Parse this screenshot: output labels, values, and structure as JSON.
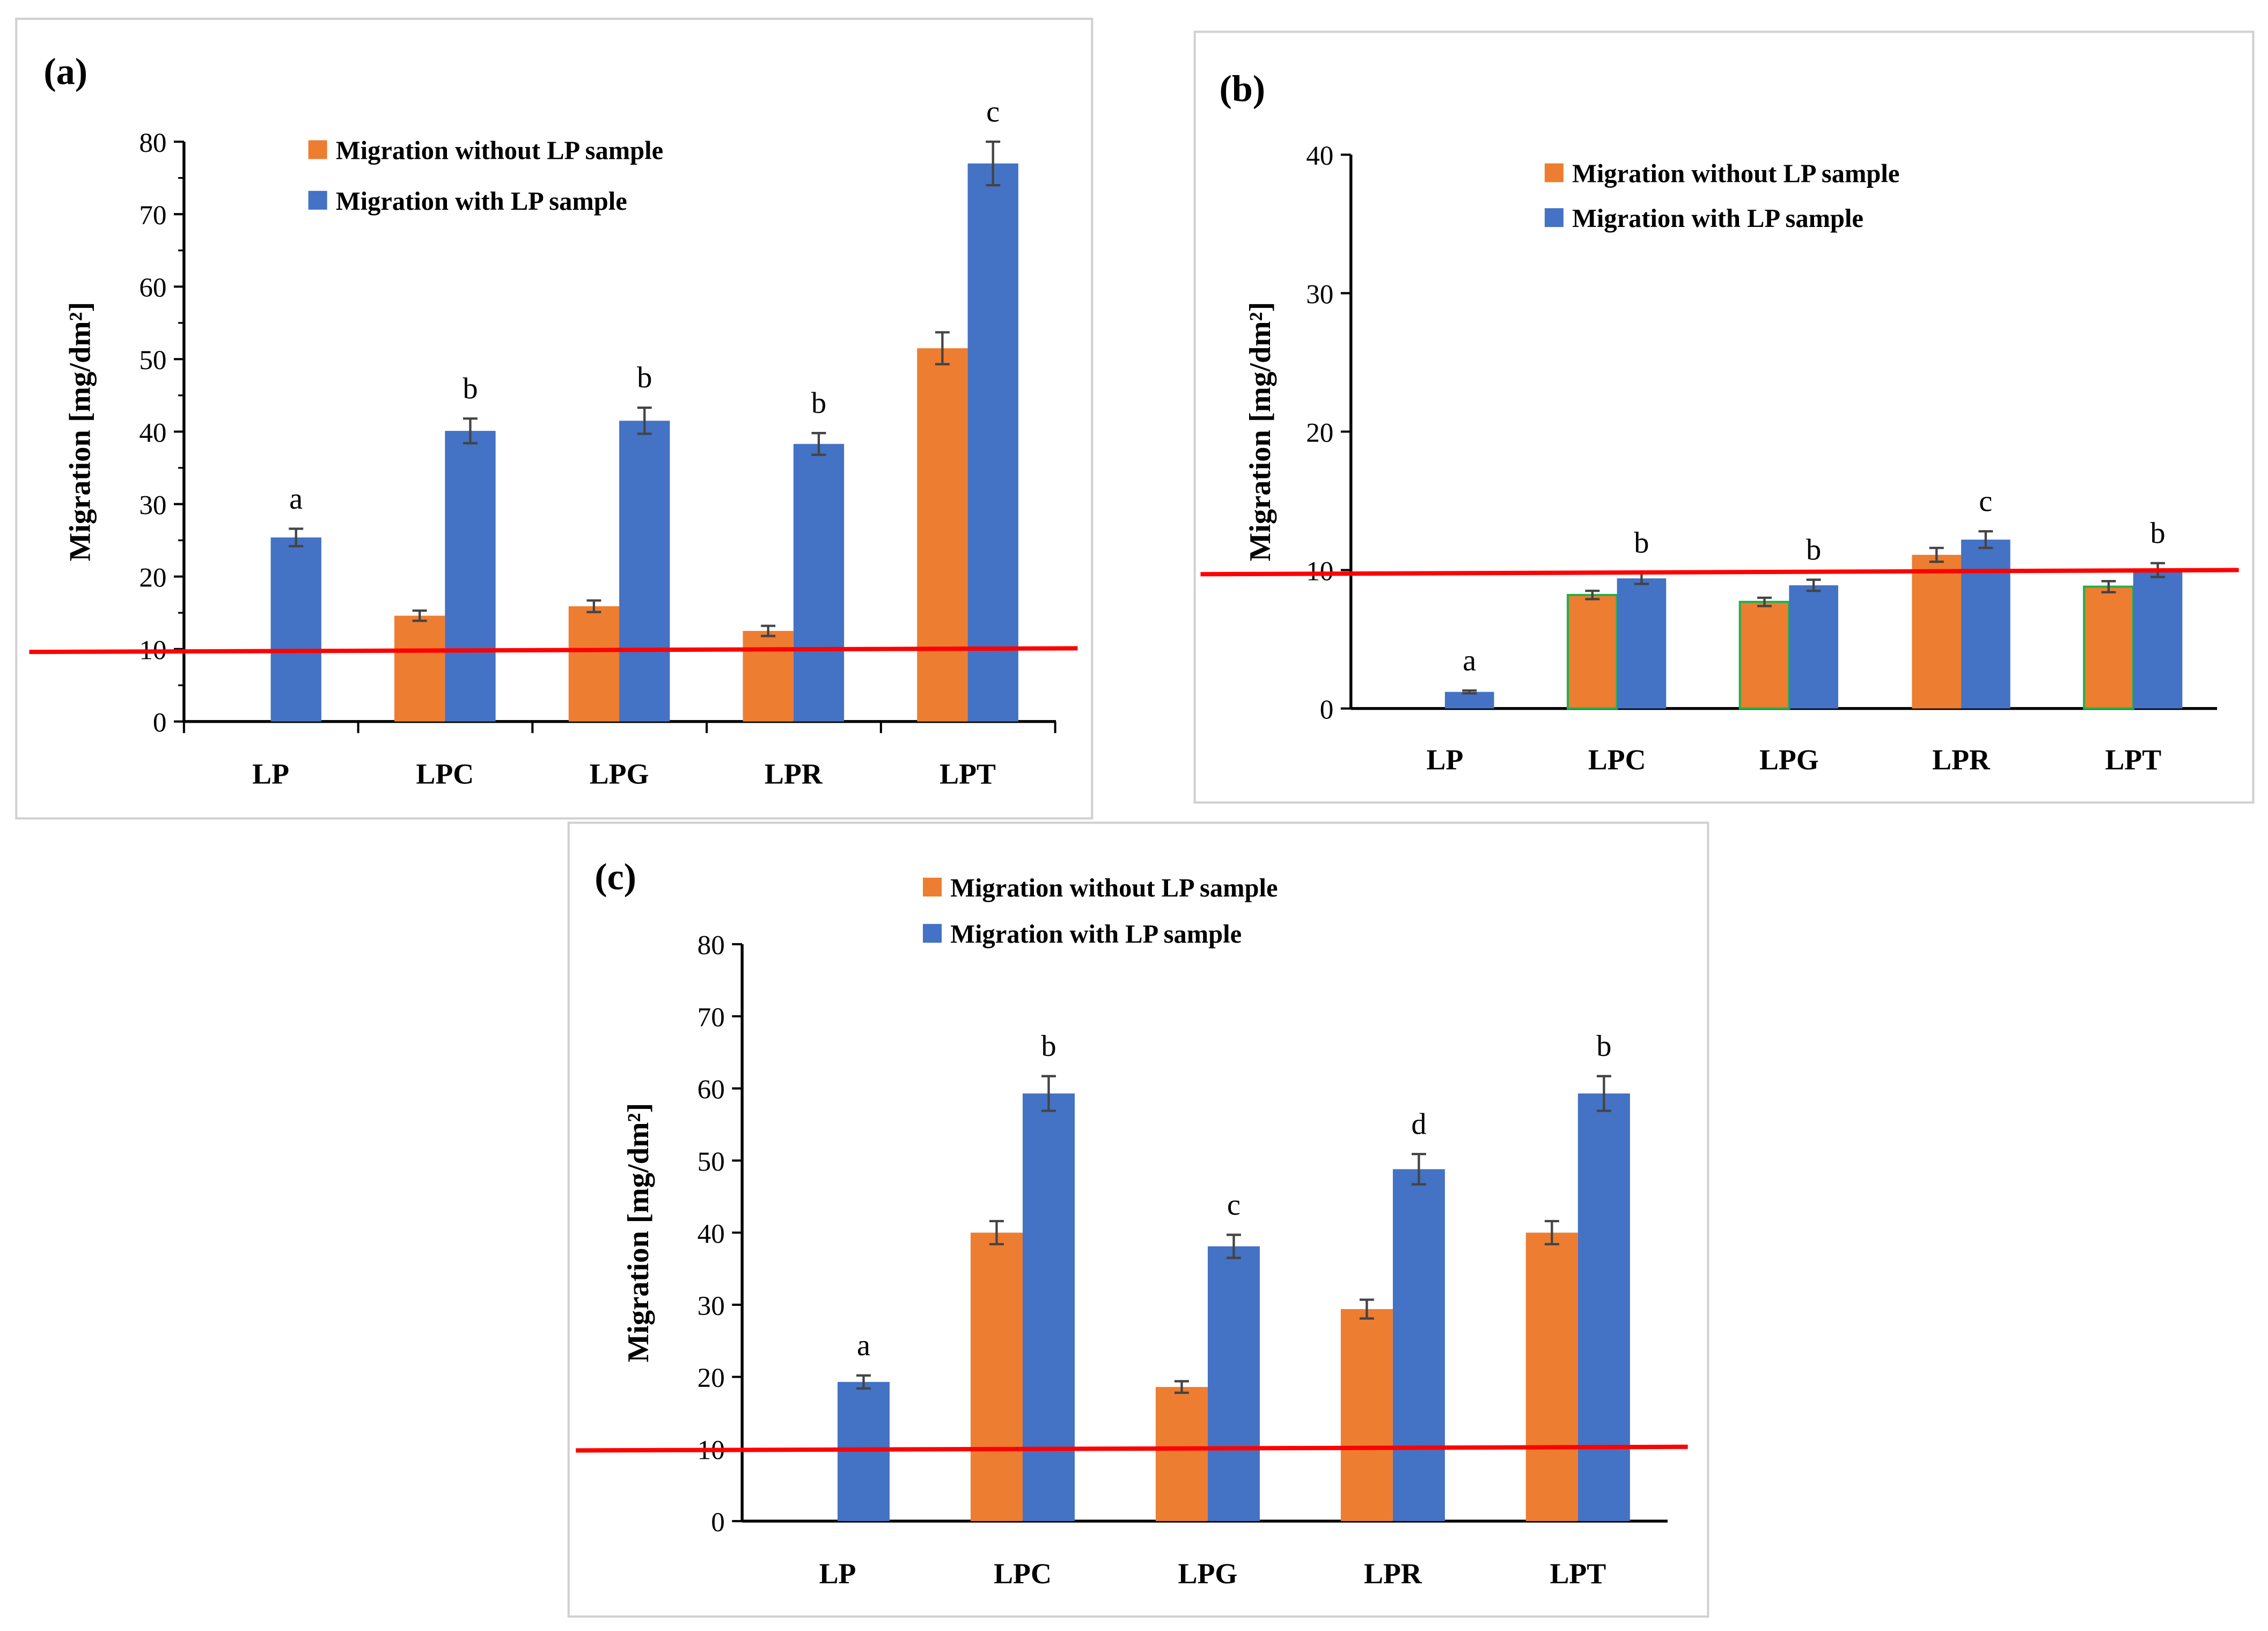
{
  "chart_data": [
    {
      "panel": "(a)",
      "type": "bar",
      "categories": [
        "LP",
        "LPC",
        "LPG",
        "LPR",
        "LPT"
      ],
      "ylabel": "Migration [mg/dm²]",
      "ylim": [
        0,
        80
      ],
      "yticks": [
        0,
        10,
        20,
        30,
        40,
        50,
        60,
        70,
        80
      ],
      "legend_position": "top-left",
      "series": [
        {
          "name": "Migration without LP sample",
          "color": "#ED7D31",
          "values": [
            null,
            14.6,
            15.9,
            12.5,
            51.5
          ],
          "errors": [
            null,
            0.7,
            0.8,
            0.7,
            2.2
          ]
        },
        {
          "name": "Migration with LP sample",
          "color": "#4472C4",
          "values": [
            25.4,
            40.1,
            41.5,
            38.3,
            77.0
          ],
          "errors": [
            1.2,
            1.7,
            1.8,
            1.5,
            3.0
          ]
        }
      ],
      "significance": [
        "a",
        "b",
        "b",
        "b",
        "c"
      ],
      "limit_line": {
        "value": 10,
        "color": "#FF0000"
      }
    },
    {
      "panel": "(b)",
      "type": "bar",
      "categories": [
        "LP",
        "LPC",
        "LPG",
        "LPR",
        "LPT"
      ],
      "ylabel": "Migration [mg/dm²]",
      "ylim": [
        0,
        40
      ],
      "yticks": [
        0,
        10,
        20,
        30,
        40
      ],
      "legend_position": "top-left",
      "series": [
        {
          "name": "Migration without LP sample",
          "color": "#ED7D31",
          "values": [
            null,
            8.2,
            7.7,
            11.1,
            8.8
          ],
          "errors": [
            null,
            0.3,
            0.3,
            0.5,
            0.4
          ]
        },
        {
          "name": "Migration with LP sample",
          "color": "#4472C4",
          "values": [
            1.2,
            9.4,
            8.9,
            12.2,
            10.0
          ],
          "errors": [
            0.1,
            0.4,
            0.4,
            0.6,
            0.5
          ]
        }
      ],
      "significance": [
        "a",
        "b",
        "b",
        "c",
        "b"
      ],
      "limit_line": {
        "value": 10,
        "color": "#FF0000"
      }
    },
    {
      "panel": "(c)",
      "type": "bar",
      "categories": [
        "LP",
        "LPC",
        "LPG",
        "LPR",
        "LPT"
      ],
      "ylabel": "Migration [mg/dm²]",
      "ylim": [
        0,
        80
      ],
      "yticks": [
        0,
        10,
        20,
        30,
        40,
        50,
        60,
        70,
        80
      ],
      "legend_position": "top-left",
      "series": [
        {
          "name": "Migration without LP sample",
          "color": "#ED7D31",
          "values": [
            null,
            40.0,
            18.6,
            29.4,
            40.0
          ],
          "errors": [
            null,
            1.6,
            0.8,
            1.3,
            1.6
          ]
        },
        {
          "name": "Migration with LP sample",
          "color": "#4472C4",
          "values": [
            19.3,
            59.3,
            38.1,
            48.8,
            59.3
          ],
          "errors": [
            0.9,
            2.4,
            1.6,
            2.1,
            2.4
          ]
        }
      ],
      "significance": [
        "a",
        "b",
        "c",
        "d",
        "b"
      ],
      "limit_line": {
        "value": 10,
        "color": "#FF0000"
      }
    }
  ]
}
